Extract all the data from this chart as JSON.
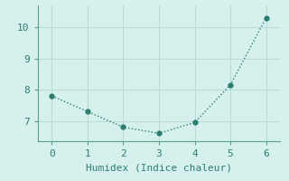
{
  "x": [
    0,
    1,
    2,
    3,
    4,
    5,
    6
  ],
  "y": [
    7.8,
    7.3,
    6.8,
    6.6,
    6.95,
    8.15,
    10.3
  ],
  "line_color": "#2a7d6e",
  "marker_color": "#2a7d6e",
  "background_color": "#d6f0ee",
  "grid_color": "#b8ddd9",
  "spine_color": "#5a9e90",
  "xlabel": "Humidex (Indice chaleur)",
  "xlabel_fontsize": 8,
  "tick_fontsize": 8,
  "xlim": [
    -0.4,
    6.4
  ],
  "ylim": [
    6.35,
    10.7
  ],
  "yticks": [
    7,
    8,
    9,
    10
  ],
  "xticks": [
    0,
    1,
    2,
    3,
    4,
    5,
    6
  ],
  "line_width": 1.0,
  "marker_size": 3.5
}
